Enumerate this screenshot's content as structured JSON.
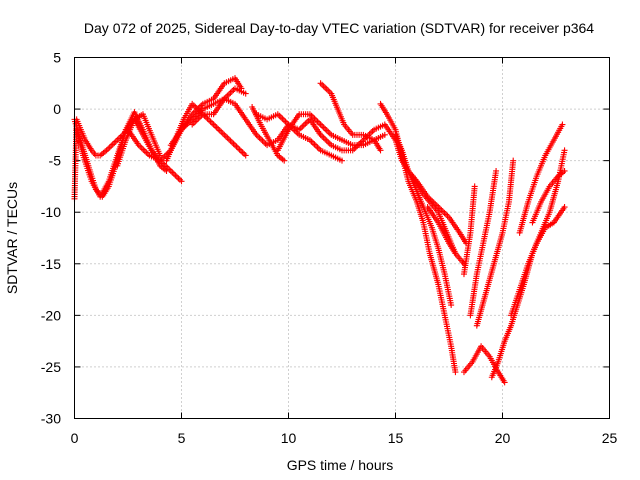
{
  "chart_data": {
    "type": "scatter",
    "title": "Day 072 of 2025, Sidereal Day-to-day VTEC variation (SDTVAR) for receiver p364",
    "xlabel": "GPS time / hours",
    "ylabel": "SDTVAR / TECUs",
    "xlim": [
      0,
      25
    ],
    "ylim": [
      -30,
      5
    ],
    "xticks": [
      "0",
      "5",
      "10",
      "15",
      "20",
      "25"
    ],
    "yticks": [
      "5",
      "0",
      "-5",
      "-10",
      "-15",
      "-20",
      "-25",
      "-30"
    ],
    "grid": true,
    "marker": "+",
    "color": "#ff0000",
    "series": [
      {
        "x": [
          0.0,
          0.1,
          0.3,
          0.5,
          0.8,
          1.0,
          1.2,
          1.5,
          2.0,
          2.5,
          3.0,
          3.5,
          4.0,
          4.5,
          5.0,
          5.5,
          6.0,
          6.5,
          7.0,
          7.5,
          8.0,
          8.5,
          9.0,
          9.5,
          10.0,
          10.5,
          11.0,
          11.5,
          12.0,
          12.5,
          13.0,
          13.5,
          14.0,
          14.5,
          15.0,
          15.3,
          15.6,
          16.0,
          16.5,
          17.0,
          17.5,
          18.0,
          18.3
        ],
        "y": [
          -8.7,
          -1.0,
          -2.0,
          -3.0,
          -4.0,
          -4.5,
          -4.5,
          -4.0,
          -3.0,
          -2.0,
          -3.5,
          -4.5,
          -5.0,
          -4.0,
          -2.0,
          -1.0,
          0.0,
          0.5,
          1.0,
          0.5,
          -1.0,
          -2.5,
          -3.5,
          -3.0,
          -1.5,
          -2.0,
          -1.0,
          -2.5,
          -3.5,
          -4.0,
          -4.0,
          -3.0,
          -2.0,
          -1.5,
          -3.0,
          -5.0,
          -6.0,
          -7.0,
          -8.5,
          -9.5,
          -10.5,
          -12.0,
          -13.0
        ]
      },
      {
        "x": [
          0.0,
          0.2,
          0.5,
          0.8,
          1.0,
          1.3,
          1.6,
          2.0,
          2.4,
          2.8,
          3.2,
          3.6,
          4.0,
          4.3
        ],
        "y": [
          -1.0,
          -2.5,
          -4.5,
          -6.5,
          -7.8,
          -8.5,
          -7.5,
          -5.0,
          -2.0,
          -0.3,
          -2.0,
          -4.0,
          -5.5,
          -6.0
        ]
      },
      {
        "x": [
          0.1,
          0.4,
          0.8,
          1.2,
          1.6,
          2.0,
          2.4,
          2.8,
          3.2,
          3.6,
          4.0,
          4.5,
          5.0
        ],
        "y": [
          -2.0,
          -4.5,
          -7.0,
          -8.5,
          -7.0,
          -4.5,
          -2.0,
          -1.0,
          -2.5,
          -4.0,
          -5.0,
          -6.0,
          -7.0
        ]
      },
      {
        "x": [
          2.0,
          2.4,
          2.8,
          3.2,
          3.6,
          4.0
        ],
        "y": [
          -5.5,
          -3.0,
          -1.0,
          -0.5,
          -2.5,
          -4.5
        ]
      },
      {
        "x": [
          4.3,
          4.7,
          5.1,
          5.5,
          6.0,
          6.5,
          7.0,
          7.5,
          8.0
        ],
        "y": [
          -5.0,
          -3.0,
          -1.0,
          0.5,
          -0.5,
          -1.5,
          -2.5,
          -3.5,
          -4.5
        ]
      },
      {
        "x": [
          4.5,
          5.0,
          5.5,
          6.0,
          6.5,
          7.0,
          7.5,
          7.8
        ],
        "y": [
          -3.5,
          -2.0,
          -0.5,
          0.5,
          1.0,
          2.5,
          3.0,
          2.0
        ]
      },
      {
        "x": [
          5.5,
          6.0,
          6.5,
          7.0,
          7.5,
          8.0
        ],
        "y": [
          -1.5,
          -0.5,
          -0.5,
          1.0,
          2.0,
          1.5
        ]
      },
      {
        "x": [
          8.3,
          8.7,
          9.1,
          9.5,
          9.8
        ],
        "y": [
          0.2,
          -1.5,
          -3.0,
          -4.5,
          -5.0
        ]
      },
      {
        "x": [
          8.5,
          9.0,
          9.5,
          10.0,
          10.5,
          11.0,
          11.5,
          12.0,
          12.5
        ],
        "y": [
          -0.5,
          -1.0,
          -0.5,
          -1.5,
          -2.5,
          -3.0,
          -4.0,
          -4.5,
          -5.0
        ]
      },
      {
        "x": [
          9.5,
          10.0,
          10.5,
          11.0,
          11.5,
          12.0,
          12.5,
          13.0,
          13.5,
          14.0,
          14.5
        ],
        "y": [
          -4.0,
          -2.0,
          -0.5,
          -0.5,
          -1.5,
          -2.5,
          -3.0,
          -3.5,
          -3.5,
          -3.0,
          -2.5
        ]
      },
      {
        "x": [
          11.5,
          12.0,
          12.3,
          12.6,
          13.0,
          13.5,
          14.0,
          14.3
        ],
        "y": [
          2.5,
          1.5,
          0.0,
          -1.5,
          -2.5,
          -2.5,
          -3.0,
          -4.0
        ]
      },
      {
        "x": [
          14.3,
          14.6,
          15.0,
          15.3,
          15.6,
          16.0,
          16.3,
          16.6,
          17.0,
          17.3,
          17.6,
          17.8
        ],
        "y": [
          0.5,
          -0.5,
          -2.0,
          -4.5,
          -7.0,
          -9.0,
          -11.0,
          -14.0,
          -17.0,
          -20.0,
          -23.0,
          -25.5
        ]
      },
      {
        "x": [
          15.0,
          15.3,
          15.6,
          16.0,
          16.3,
          16.7,
          17.0,
          17.3,
          17.6
        ],
        "y": [
          -2.5,
          -4.0,
          -6.0,
          -8.0,
          -9.5,
          -11.5,
          -13.5,
          -16.0,
          -19.0
        ]
      },
      {
        "x": [
          15.8,
          16.2,
          16.6,
          17.0,
          17.4,
          17.8,
          18.2
        ],
        "y": [
          -6.5,
          -8.0,
          -9.0,
          -10.0,
          -12.0,
          -14.0,
          -15.0
        ]
      },
      {
        "x": [
          16.5,
          17.0,
          17.5,
          17.8
        ],
        "y": [
          -9.5,
          -11.0,
          -13.0,
          -14.0
        ]
      },
      {
        "x": [
          18.2,
          18.5,
          18.7
        ],
        "y": [
          -16.0,
          -12.0,
          -7.5
        ]
      },
      {
        "x": [
          18.5,
          18.8,
          19.1,
          19.4,
          19.7
        ],
        "y": [
          -20.0,
          -16.0,
          -13.0,
          -10.0,
          -6.0
        ]
      },
      {
        "x": [
          18.2,
          18.6,
          19.0,
          19.4,
          19.8,
          20.1
        ],
        "y": [
          -25.5,
          -24.5,
          -23.0,
          -24.0,
          -25.5,
          -26.5
        ]
      },
      {
        "x": [
          18.8,
          19.2,
          19.6,
          20.0,
          20.3,
          20.5
        ],
        "y": [
          -21.0,
          -18.0,
          -15.0,
          -12.0,
          -9.0,
          -5.0
        ]
      },
      {
        "x": [
          19.5,
          19.8,
          20.1,
          20.4,
          20.7,
          21.0,
          21.4,
          21.8,
          22.2,
          22.6,
          22.9
        ],
        "y": [
          -26.0,
          -24.5,
          -22.5,
          -21.0,
          -19.0,
          -17.0,
          -14.0,
          -12.0,
          -10.0,
          -7.0,
          -4.0
        ]
      },
      {
        "x": [
          20.4,
          20.8,
          21.2,
          21.6,
          22.0,
          22.4,
          22.9
        ],
        "y": [
          -20.0,
          -17.5,
          -15.0,
          -13.0,
          -11.5,
          -11.0,
          -9.5
        ]
      },
      {
        "x": [
          20.8,
          21.2,
          21.6,
          22.0,
          22.4,
          22.8
        ],
        "y": [
          -12.0,
          -9.0,
          -6.5,
          -4.5,
          -3.0,
          -1.5
        ]
      },
      {
        "x": [
          21.4,
          21.8,
          22.2,
          22.6,
          22.9
        ],
        "y": [
          -11.0,
          -9.0,
          -7.5,
          -6.5,
          -6.0
        ]
      }
    ]
  }
}
